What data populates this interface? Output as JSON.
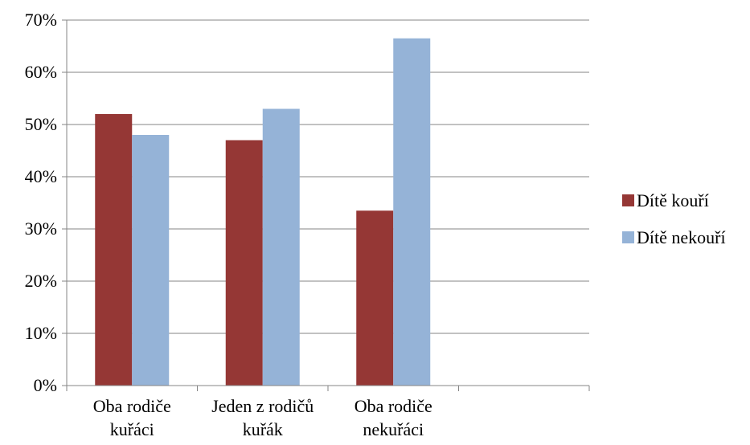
{
  "chart_data": {
    "type": "bar",
    "categories": [
      [
        "Oba rodiče",
        "kuřáci"
      ],
      [
        "Jeden z rodičů",
        "kuřák"
      ],
      [
        "Oba rodiče",
        "nekuřáci"
      ],
      [
        "",
        ""
      ]
    ],
    "series": [
      {
        "name": "Dítě kouří",
        "color": "#953735",
        "values": [
          52,
          47,
          33.5,
          null
        ]
      },
      {
        "name": "Dítě nekouří",
        "color": "#95B3D7",
        "values": [
          48,
          53,
          66.5,
          null
        ]
      }
    ],
    "y_ticks": [
      "0%",
      "10%",
      "20%",
      "30%",
      "40%",
      "50%",
      "60%",
      "70%"
    ],
    "ylim": [
      0,
      70
    ],
    "grid": true,
    "legend_position": "right"
  }
}
